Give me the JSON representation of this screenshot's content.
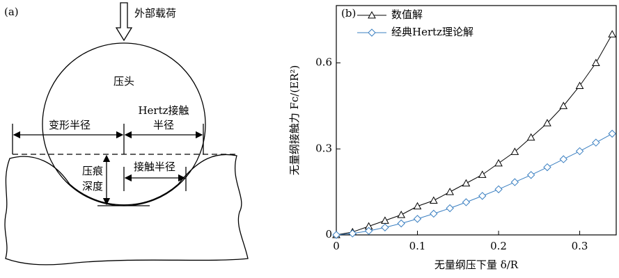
{
  "diagram": {
    "panel": "(a)",
    "load": "外部载荷",
    "indenter": "压头",
    "deform_radius": "变形半径",
    "hertz_radius": [
      "Hertz接触",
      "半径"
    ],
    "depth": [
      "压痕",
      "深度"
    ],
    "contact_radius": "接触半径"
  },
  "chart_data": {
    "type": "line",
    "panel": "(b)",
    "xlabel": "无量纲压下量 δ/R",
    "ylabel": "无量纲接触力 Fc/(ER²)",
    "x": [
      0,
      0.02,
      0.04,
      0.06,
      0.08,
      0.1,
      0.12,
      0.14,
      0.16,
      0.18,
      0.2,
      0.22,
      0.24,
      0.26,
      0.28,
      0.3,
      0.32,
      0.34
    ],
    "series": [
      {
        "name": "数值解",
        "color": "#000000",
        "marker": "triangle",
        "values": [
          0,
          0.01,
          0.03,
          0.05,
          0.07,
          0.1,
          0.12,
          0.15,
          0.18,
          0.21,
          0.25,
          0.29,
          0.34,
          0.39,
          0.45,
          0.52,
          0.6,
          0.7
        ]
      },
      {
        "name": "经典Hertz理论解",
        "color": "#3a7fc1",
        "marker": "diamond",
        "values": [
          0,
          0.005,
          0.014,
          0.026,
          0.04,
          0.056,
          0.074,
          0.093,
          0.114,
          0.136,
          0.159,
          0.184,
          0.209,
          0.236,
          0.264,
          0.292,
          0.322,
          0.353
        ]
      }
    ],
    "xlim": [
      0,
      0.345
    ],
    "ylim": [
      0,
      0.8
    ],
    "xticks": [
      0,
      0.1,
      0.2,
      0.3
    ],
    "yticks": [
      0,
      0.3,
      0.6
    ],
    "legend": "top-left"
  }
}
